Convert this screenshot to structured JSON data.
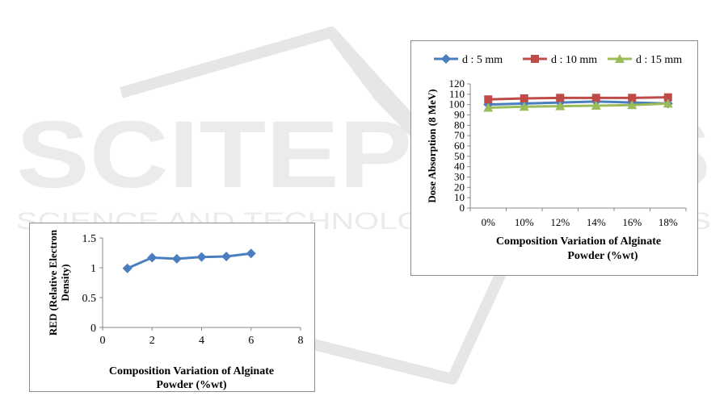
{
  "watermark": {
    "brand": "SCITEPRESS",
    "tagline": "SCIENCE AND TECHNOLOGY PUBLICATIONS"
  },
  "chart_data": [
    {
      "type": "scatter",
      "xlabel": "Composition Variation of Alginate Powder (%wt)",
      "xlabel_lines": [
        "Composition Variation of Alginate",
        "Powder (%wt)"
      ],
      "ylabel": "RED (Relative Electron Density)",
      "ylabel_lines": [
        "RED (Relative Electron",
        "Density)"
      ],
      "xlim": [
        0,
        8
      ],
      "ylim": [
        0,
        1.5
      ],
      "x_ticks": [
        0,
        2,
        4,
        6,
        8
      ],
      "y_ticks": [
        0,
        0.5,
        1,
        1.5
      ],
      "x_tick_labels": [
        "0",
        "2",
        "4",
        "6",
        "8"
      ],
      "y_tick_labels": [
        "0",
        "0.5",
        "1",
        "1.5"
      ],
      "series": [
        {
          "color": "#4a7ebf",
          "x": [
            1,
            2,
            3,
            4,
            5,
            6
          ],
          "y": [
            0.99,
            1.17,
            1.15,
            1.18,
            1.19,
            1.24
          ]
        }
      ],
      "grid": false,
      "legend": "none"
    },
    {
      "type": "line",
      "xlabel": "Composition Variation of Alginate Powder (%wt)",
      "xlabel_lines": [
        "Composition Variation of Alginate",
        "Powder (%wt)"
      ],
      "ylabel": "Dose Absorption (8 MeV)",
      "categories": [
        "0%",
        "10%",
        "12%",
        "14%",
        "16%",
        "18%"
      ],
      "ylim": [
        0,
        120
      ],
      "y_ticks": [
        0,
        10,
        20,
        30,
        40,
        50,
        60,
        70,
        80,
        90,
        100,
        110,
        120
      ],
      "y_tick_labels": [
        "0",
        "10",
        "20",
        "30",
        "40",
        "50",
        "60",
        "70",
        "80",
        "90",
        "100",
        "110",
        "120"
      ],
      "legend": "top",
      "grid": false,
      "series": [
        {
          "name": "d : 5 mm",
          "color": "#4a7ebf",
          "marker": "diamond",
          "values": [
            100,
            101,
            102,
            103,
            102,
            101
          ]
        },
        {
          "name": "d : 10 mm",
          "color": "#be4b48",
          "marker": "square",
          "values": [
            105,
            106,
            106.5,
            106.5,
            106.5,
            107
          ]
        },
        {
          "name": "d : 15 mm",
          "color": "#9bbb59",
          "marker": "triangle",
          "values": [
            97,
            98,
            98.5,
            99,
            99.5,
            101
          ]
        }
      ]
    }
  ]
}
